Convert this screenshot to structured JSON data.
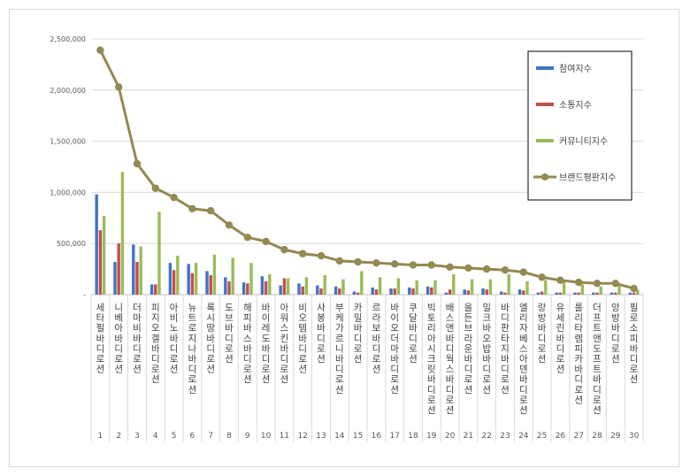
{
  "chart_data": {
    "type": "bar",
    "title": "",
    "xlabel": "",
    "ylabel": "",
    "ylim": [
      0,
      2500000
    ],
    "yticks": [
      "-",
      "500,000",
      "1,000,000",
      "1,500,000",
      "2,000,000",
      "2,500,000"
    ],
    "grid": true,
    "legend_position": "right",
    "categories": [
      "세타필 바디로션",
      "니베아 바디로션",
      "더마비 바디로션",
      "피지오겔 바디로션",
      "아비노 바디로션",
      "뉴트로지나 바디로션",
      "록시땅 바디로션",
      "도브 바디로션",
      "해피바스 바디로션",
      "바이레도 바디로션",
      "아워스킨 바디로션",
      "비오템 바디로션",
      "사봉 바디로션",
      "부케가르니 바디로션",
      "카밀 바디로션",
      "르라보 바디로션",
      "바이오더마 바디로션",
      "쿠달 바디로션",
      "빅토리아시크릿 바디로션",
      "배스앤바디웍스 바디로션",
      "올든브라운 바디로션",
      "밀크바오밥 바디로션",
      "바디판타지 바디로션",
      "엘리자베스아덴 바디로션",
      "랑방 바디로션",
      "유세린 바디로션",
      "롤리타렘피카 바디로션",
      "더프트앤도프트 바디로션",
      "앙방 바디로션",
      "필로소피 바디로션"
    ],
    "ranks": [
      "1",
      "2",
      "3",
      "4",
      "5",
      "6",
      "7",
      "8",
      "9",
      "10",
      "11",
      "12",
      "13",
      "14",
      "15",
      "16",
      "17",
      "18",
      "19",
      "20",
      "21",
      "22",
      "23",
      "24",
      "25",
      "26",
      "27",
      "28",
      "29",
      "30"
    ],
    "series": [
      {
        "name": "참여지수",
        "color": "#4472c4",
        "kind": "bar",
        "values": [
          980000,
          320000,
          490000,
          100000,
          310000,
          300000,
          230000,
          170000,
          120000,
          180000,
          90000,
          110000,
          90000,
          80000,
          30000,
          70000,
          60000,
          70000,
          80000,
          20000,
          50000,
          60000,
          30000,
          50000,
          20000,
          20000,
          20000,
          20000,
          20000,
          20000
        ]
      },
      {
        "name": "소통지수",
        "color": "#c0504d",
        "kind": "bar",
        "values": [
          630000,
          500000,
          320000,
          100000,
          240000,
          210000,
          190000,
          130000,
          110000,
          130000,
          160000,
          80000,
          60000,
          60000,
          20000,
          50000,
          60000,
          60000,
          70000,
          50000,
          40000,
          50000,
          20000,
          40000,
          30000,
          20000,
          20000,
          20000,
          20000,
          20000
        ]
      },
      {
        "name": "커뮤니티지수",
        "color": "#9bbb59",
        "kind": "bar",
        "values": [
          770000,
          1200000,
          470000,
          810000,
          380000,
          310000,
          390000,
          360000,
          310000,
          200000,
          160000,
          170000,
          190000,
          150000,
          230000,
          170000,
          160000,
          140000,
          140000,
          200000,
          150000,
          150000,
          200000,
          130000,
          140000,
          130000,
          100000,
          80000,
          90000,
          50000
        ]
      },
      {
        "name": "브랜드평판지수",
        "color": "#938953",
        "kind": "line",
        "values": [
          2390000,
          2030000,
          1280000,
          1040000,
          950000,
          840000,
          820000,
          680000,
          560000,
          520000,
          440000,
          400000,
          380000,
          330000,
          320000,
          310000,
          300000,
          290000,
          290000,
          270000,
          260000,
          250000,
          240000,
          220000,
          170000,
          140000,
          120000,
          110000,
          110000,
          60000
        ]
      }
    ]
  }
}
